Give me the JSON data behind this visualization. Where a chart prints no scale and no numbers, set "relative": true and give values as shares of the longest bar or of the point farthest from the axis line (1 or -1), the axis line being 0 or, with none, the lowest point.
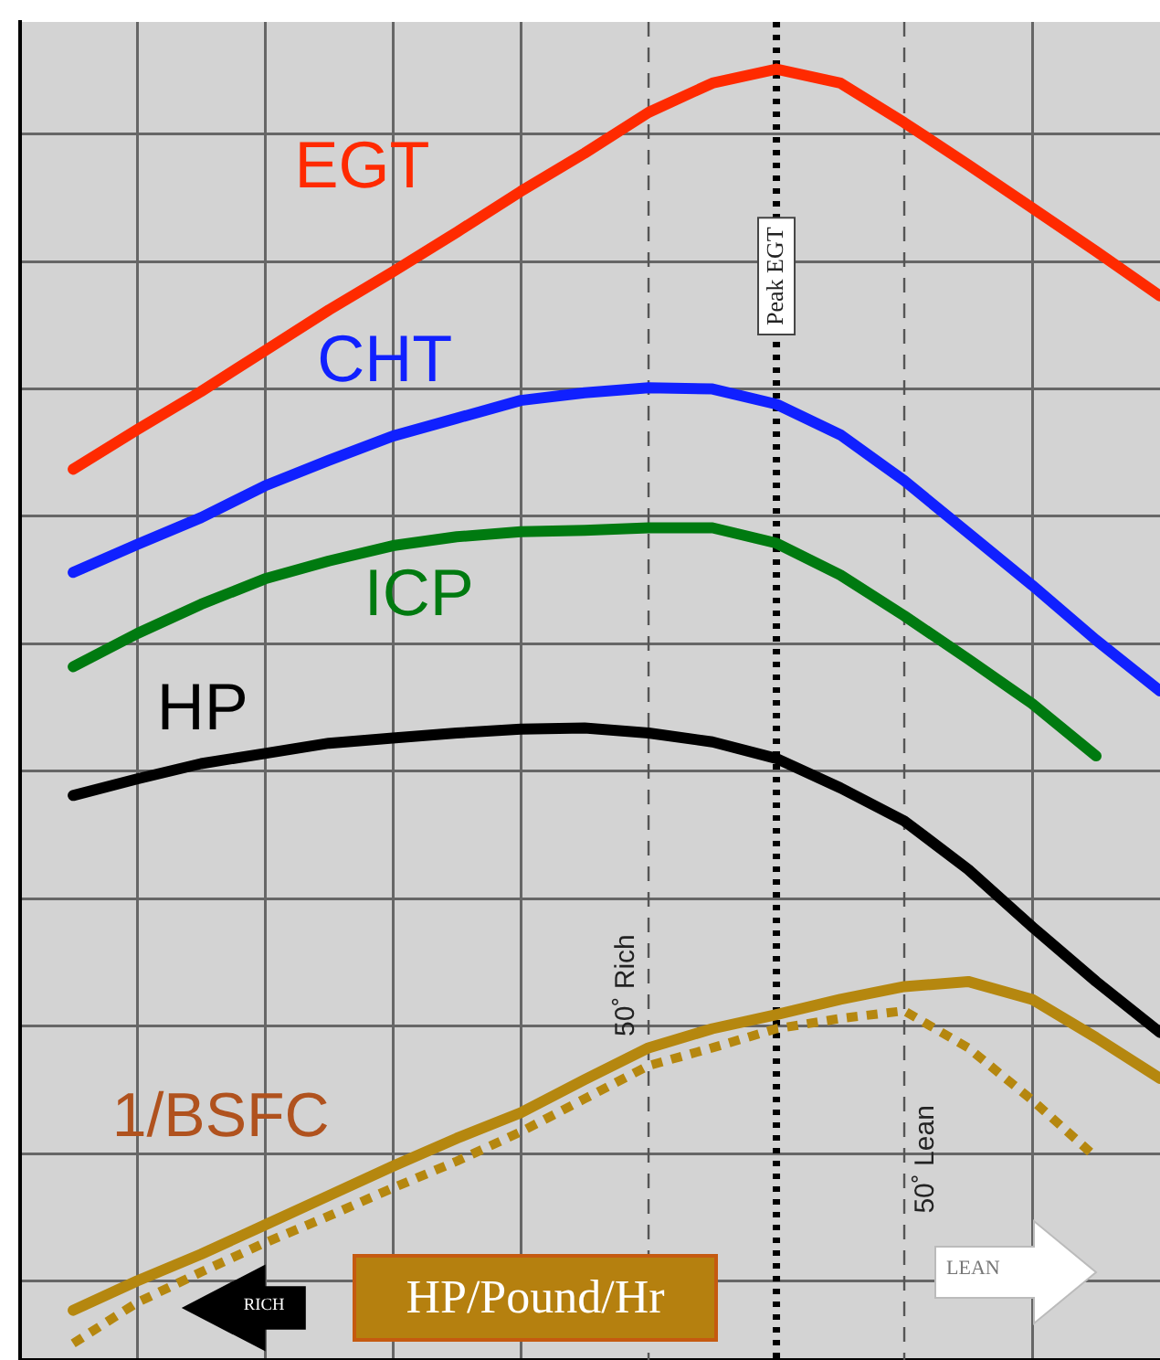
{
  "chart_data": {
    "type": "line",
    "relative": true,
    "categories": [
      null,
      null,
      null,
      null,
      null,
      null,
      null,
      null,
      null,
      null,
      null,
      null,
      null,
      null,
      null,
      null,
      null,
      null
    ],
    "grid": true,
    "legend": false,
    "marker": "none",
    "series": [
      {
        "name": "EGT",
        "color": "#ff2a00",
        "values": [
          0.686,
          0.717,
          0.747,
          0.779,
          0.811,
          0.841,
          0.872,
          0.904,
          0.934,
          0.966,
          0.989,
          1.0,
          0.989,
          0.958,
          0.925,
          0.891,
          0.857,
          0.822
        ]
      },
      {
        "name": "CHT",
        "color": "#1020ff",
        "values": [
          0.605,
          0.627,
          0.648,
          0.673,
          0.693,
          0.712,
          0.726,
          0.74,
          0.746,
          0.75,
          0.749,
          0.737,
          0.713,
          0.677,
          0.636,
          0.595,
          0.552,
          0.512
        ]
      },
      {
        "name": "ICP",
        "color": "#007a10",
        "values": [
          0.531,
          0.557,
          0.58,
          0.6,
          0.614,
          0.626,
          0.633,
          0.637,
          0.638,
          0.64,
          0.64,
          0.628,
          0.603,
          0.571,
          0.537,
          0.502,
          0.461,
          null
        ]
      },
      {
        "name": "HP",
        "color": "#000000",
        "values": [
          0.43,
          0.443,
          0.455,
          0.463,
          0.471,
          0.475,
          0.479,
          0.482,
          0.483,
          0.479,
          0.472,
          0.459,
          0.436,
          0.41,
          0.372,
          0.327,
          0.284,
          0.244
        ]
      },
      {
        "name": "1/BSFC",
        "color": "#b5870f",
        "values": [
          0.026,
          0.049,
          0.07,
          0.093,
          0.116,
          0.139,
          0.161,
          0.181,
          0.207,
          0.232,
          0.247,
          0.258,
          0.27,
          0.28,
          0.284,
          0.27,
          0.24,
          0.208
        ]
      },
      {
        "color": "#b5870f",
        "line_style": "dotted",
        "values": [
          0,
          0.032,
          0.056,
          0.079,
          0.1,
          0.122,
          0.143,
          0.166,
          0.192,
          0.218,
          0.232,
          0.247,
          0.255,
          0.261,
          0.232,
          0.191,
          0.146,
          null
        ]
      }
    ],
    "annotations": [
      "50˚ Rich",
      "Peak EGT",
      "50˚ Lean",
      "HP/Pound/Hr",
      "RICH",
      "LEAN"
    ]
  }
}
